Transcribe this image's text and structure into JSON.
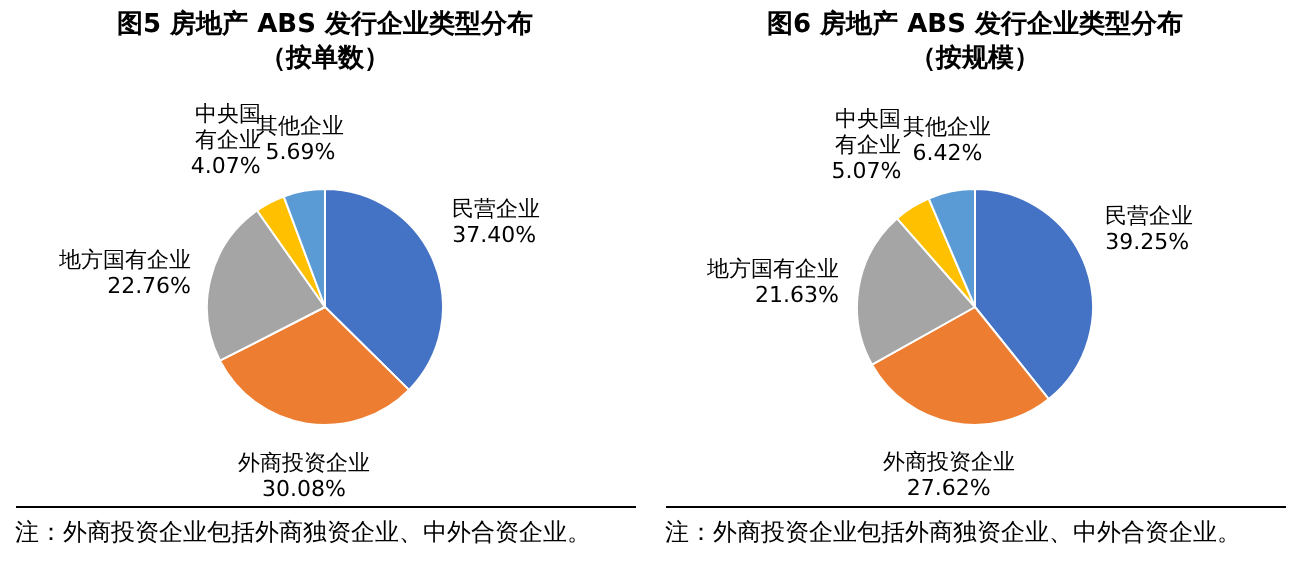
{
  "chart_data": [
    {
      "type": "pie",
      "title": "图5 房地产 ABS 发行企业类型分布",
      "subtitle": "（按单数）",
      "categories": [
        "民营企业",
        "外商投资企业",
        "地方国有企业",
        "中央国有企业",
        "其他企业"
      ],
      "values": [
        37.4,
        30.08,
        22.76,
        4.07,
        5.69
      ],
      "value_labels": [
        "37.40%",
        "30.08%",
        "22.76%",
        "4.07%",
        "5.69%"
      ],
      "colors": [
        "#4472c4",
        "#ed7d31",
        "#a5a5a5",
        "#ffc000",
        "#5b9bd5"
      ],
      "annotations": [
        "注：外商投资企业包括外商独资企业、中外合资企业。"
      ]
    },
    {
      "type": "pie",
      "title": "图6 房地产 ABS 发行企业类型分布",
      "subtitle": "（按规模）",
      "categories": [
        "民营企业",
        "外商投资企业",
        "地方国有企业",
        "中央国有企业",
        "其他企业"
      ],
      "values": [
        39.25,
        27.62,
        21.63,
        5.07,
        6.42
      ],
      "value_labels": [
        "39.25%",
        "27.62%",
        "21.63%",
        "5.07%",
        "6.42%"
      ],
      "colors": [
        "#4472c4",
        "#ed7d31",
        "#a5a5a5",
        "#ffc000",
        "#5b9bd5"
      ],
      "annotations": [
        "注：外商投资企业包括外商独资企业、中外合资企业。"
      ]
    }
  ]
}
